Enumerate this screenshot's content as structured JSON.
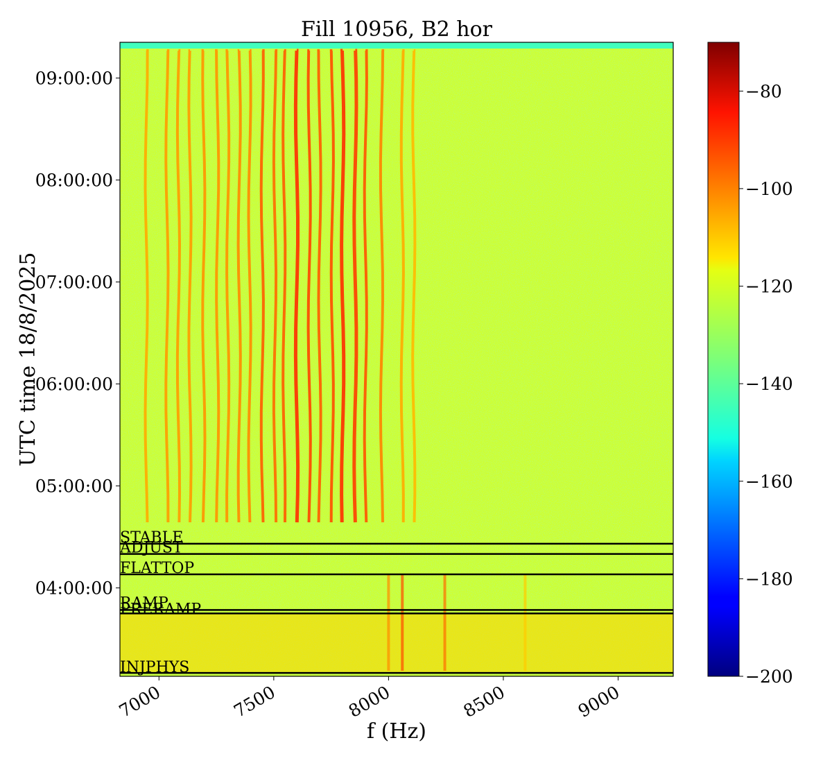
{
  "chart_data": {
    "type": "heatmap",
    "title": "Fill 10956, B2 hor",
    "xlabel": "f (Hz)",
    "ylabel": "UTC time 18/8/2025",
    "xlim": [
      6830,
      9240
    ],
    "ylim_minutes_since_midnight": [
      188,
      561
    ],
    "ylim": [
      "03:08:00",
      "09:21:00"
    ],
    "x_ticks": [
      {
        "value": 7000,
        "label": "7000"
      },
      {
        "value": 7500,
        "label": "7500"
      },
      {
        "value": 8000,
        "label": "8000"
      },
      {
        "value": 8500,
        "label": "8500"
      },
      {
        "value": 9000,
        "label": "9000"
      }
    ],
    "y_ticks": [
      {
        "value": 240,
        "label": "04:00:00"
      },
      {
        "value": 300,
        "label": "05:00:00"
      },
      {
        "value": 360,
        "label": "06:00:00"
      },
      {
        "value": 420,
        "label": "07:00:00"
      },
      {
        "value": 480,
        "label": "08:00:00"
      },
      {
        "value": 540,
        "label": "09:00:00"
      }
    ],
    "colorbar": {
      "range": [
        -200,
        -70
      ],
      "colormap": "jet",
      "ticks": [
        -80,
        -100,
        -120,
        -140,
        -160,
        -180,
        -200
      ],
      "tick_labels": [
        "−80",
        "−100",
        "−120",
        "−140",
        "−160",
        "−180",
        "−200"
      ]
    },
    "background_level": -125,
    "phase_markers": [
      {
        "label": "STABLE",
        "time": "04:26:00",
        "minutes": 266
      },
      {
        "label": "ADJUST",
        "time": "04:20:00",
        "minutes": 260
      },
      {
        "label": "FLATTOP",
        "time": "04:08:00",
        "minutes": 248
      },
      {
        "label": "RAMP",
        "time": "03:47:00",
        "minutes": 227
      },
      {
        "label": "PRERAMP",
        "time": "03:45:00",
        "minutes": 225
      },
      {
        "label": "INJPHYS",
        "time": "03:10:00",
        "minutes": 190
      }
    ],
    "spectral_lines": [
      {
        "f": 6945,
        "level": -108
      },
      {
        "f": 7035,
        "level": -106
      },
      {
        "f": 7085,
        "level": -106
      },
      {
        "f": 7135,
        "level": -106
      },
      {
        "f": 7195,
        "level": -105
      },
      {
        "f": 7255,
        "level": -105
      },
      {
        "f": 7300,
        "level": -105
      },
      {
        "f": 7350,
        "level": -104
      },
      {
        "f": 7395,
        "level": -104
      },
      {
        "f": 7450,
        "level": -98
      },
      {
        "f": 7505,
        "level": -100
      },
      {
        "f": 7545,
        "level": -98
      },
      {
        "f": 7600,
        "level": -92
      },
      {
        "f": 7655,
        "level": -95
      },
      {
        "f": 7700,
        "level": -98
      },
      {
        "f": 7755,
        "level": -96
      },
      {
        "f": 7800,
        "level": -92
      },
      {
        "f": 7855,
        "level": -94
      },
      {
        "f": 7900,
        "level": -97
      },
      {
        "f": 7970,
        "level": -103
      },
      {
        "f": 8060,
        "level": -108
      },
      {
        "f": 8110,
        "level": -110
      }
    ]
  }
}
